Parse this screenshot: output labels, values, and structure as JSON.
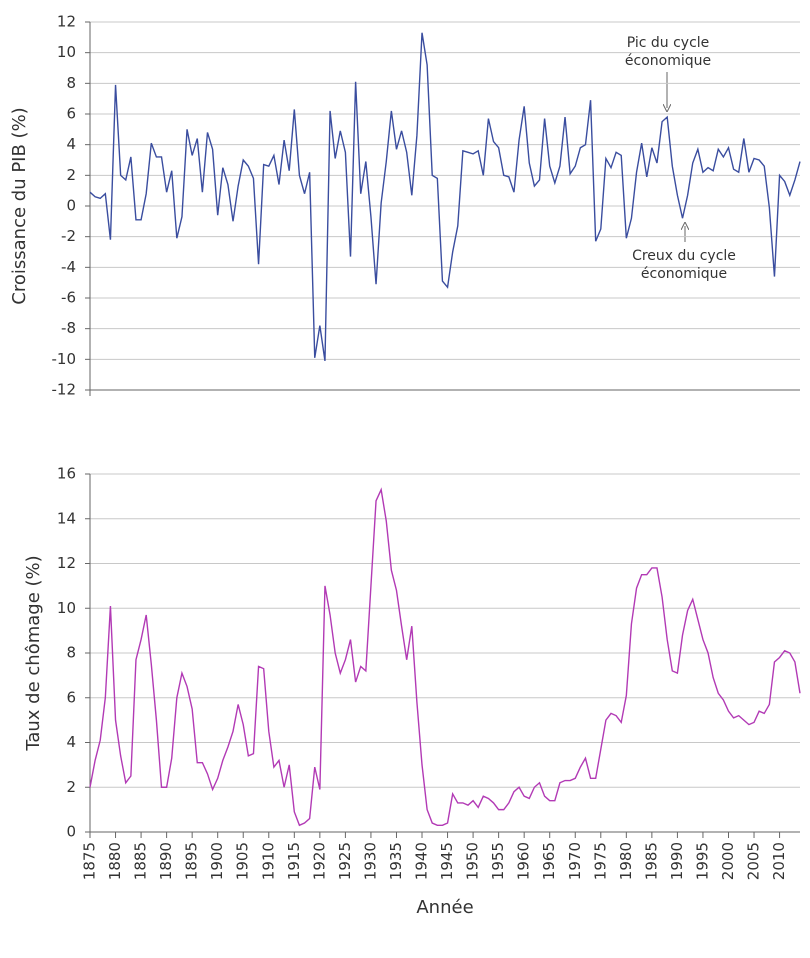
{
  "chart_data": [
    {
      "type": "line",
      "ylabel": "Croissance du PIB (%)",
      "color": "#3a4d9f",
      "xlim": [
        1875,
        2014
      ],
      "ylim": [
        -12,
        12
      ],
      "yticks": [
        -12,
        -10,
        -8,
        -6,
        -4,
        -2,
        0,
        2,
        4,
        6,
        8,
        10,
        12
      ],
      "grid": true,
      "x": [
        1875,
        1876,
        1877,
        1878,
        1879,
        1880,
        1881,
        1882,
        1883,
        1884,
        1885,
        1886,
        1887,
        1888,
        1889,
        1890,
        1891,
        1892,
        1893,
        1894,
        1895,
        1896,
        1897,
        1898,
        1899,
        1900,
        1901,
        1902,
        1903,
        1904,
        1905,
        1906,
        1907,
        1908,
        1909,
        1910,
        1911,
        1912,
        1913,
        1914,
        1915,
        1916,
        1917,
        1918,
        1919,
        1920,
        1921,
        1922,
        1923,
        1924,
        1925,
        1926,
        1927,
        1928,
        1929,
        1930,
        1931,
        1932,
        1933,
        1934,
        1935,
        1936,
        1937,
        1938,
        1939,
        1940,
        1941,
        1942,
        1943,
        1944,
        1945,
        1946,
        1947,
        1948,
        1949,
        1950,
        1951,
        1952,
        1953,
        1954,
        1955,
        1956,
        1957,
        1958,
        1959,
        1960,
        1961,
        1962,
        1963,
        1964,
        1965,
        1966,
        1967,
        1968,
        1969,
        1970,
        1971,
        1972,
        1973,
        1974,
        1975,
        1976,
        1977,
        1978,
        1979,
        1980,
        1981,
        1982,
        1983,
        1984,
        1985,
        1986,
        1987,
        1988,
        1989,
        1990,
        1991,
        1992,
        1993,
        1994,
        1995,
        1996,
        1997,
        1998,
        1999,
        2000,
        2001,
        2002,
        2003,
        2004,
        2005,
        2006,
        2007,
        2008,
        2009,
        2010,
        2011,
        2012,
        2013,
        2014
      ],
      "values": [
        0.9,
        0.6,
        0.5,
        0.8,
        -2.2,
        7.9,
        2.0,
        1.7,
        3.2,
        -0.9,
        -0.9,
        0.8,
        4.1,
        3.2,
        3.2,
        0.9,
        2.3,
        -2.1,
        -0.7,
        5.0,
        3.3,
        4.4,
        0.9,
        4.8,
        3.7,
        -0.6,
        2.5,
        1.4,
        -1.0,
        1.3,
        3.0,
        2.6,
        1.8,
        -3.8,
        2.7,
        2.6,
        3.3,
        1.4,
        4.3,
        2.3,
        6.3,
        2.0,
        0.8,
        2.2,
        -9.9,
        -7.8,
        -10.1,
        6.2,
        3.1,
        4.9,
        3.5,
        -3.3,
        8.1,
        0.8,
        2.9,
        -0.7,
        -5.1,
        0.2,
        2.9,
        6.2,
        3.7,
        4.9,
        3.5,
        0.7,
        4.6,
        11.3,
        9.2,
        2.0,
        1.8,
        -4.9,
        -5.3,
        -3.0,
        -1.3,
        3.6,
        3.5,
        3.4,
        3.6,
        2.0,
        5.7,
        4.2,
        3.8,
        2.0,
        1.9,
        0.9,
        4.3,
        6.5,
        2.8,
        1.3,
        1.7,
        5.7,
        2.6,
        1.5,
        2.6,
        5.8,
        2.1,
        2.6,
        3.8,
        4.0,
        6.9,
        -2.3,
        -1.5,
        3.1,
        2.5,
        3.5,
        3.3,
        -2.1,
        -0.8,
        2.2,
        4.1,
        1.9,
        3.8,
        2.8,
        5.5,
        5.8,
        2.6,
        0.7,
        -0.8,
        0.7,
        2.8,
        3.7,
        2.2,
        2.5,
        2.3,
        3.7,
        3.2,
        3.8,
        2.4,
        2.2,
        4.4,
        2.2,
        3.1,
        3.0,
        2.6,
        -0.1,
        -4.6,
        2.0,
        1.6,
        0.7,
        1.7,
        2.9
      ],
      "annotations": [
        {
          "lines": [
            "Pic du cycle",
            "économique"
          ]
        },
        {
          "lines": [
            "Creux du cycle",
            "économique"
          ]
        }
      ]
    },
    {
      "type": "line",
      "ylabel": "Taux de chômage (%)",
      "xlabel": "Année",
      "color": "#b23ab5",
      "xlim": [
        1875,
        2014
      ],
      "ylim": [
        0,
        16
      ],
      "yticks": [
        0,
        2,
        4,
        6,
        8,
        10,
        12,
        14,
        16
      ],
      "grid": true,
      "xticks": [
        1875,
        1880,
        1885,
        1890,
        1895,
        1900,
        1905,
        1910,
        1915,
        1920,
        1925,
        1930,
        1935,
        1940,
        1945,
        1950,
        1955,
        1960,
        1965,
        1970,
        1975,
        1980,
        1985,
        1990,
        1995,
        2000,
        2005,
        2010
      ],
      "x": [
        1875,
        1876,
        1877,
        1878,
        1879,
        1880,
        1881,
        1882,
        1883,
        1884,
        1885,
        1886,
        1887,
        1888,
        1889,
        1890,
        1891,
        1892,
        1893,
        1894,
        1895,
        1896,
        1897,
        1898,
        1899,
        1900,
        1901,
        1902,
        1903,
        1904,
        1905,
        1906,
        1907,
        1908,
        1909,
        1910,
        1911,
        1912,
        1913,
        1914,
        1915,
        1916,
        1917,
        1918,
        1919,
        1920,
        1921,
        1922,
        1923,
        1924,
        1925,
        1926,
        1927,
        1928,
        1929,
        1930,
        1931,
        1932,
        1933,
        1934,
        1935,
        1936,
        1937,
        1938,
        1939,
        1940,
        1941,
        1942,
        1943,
        1944,
        1945,
        1946,
        1947,
        1948,
        1949,
        1950,
        1951,
        1952,
        1953,
        1954,
        1955,
        1956,
        1957,
        1958,
        1959,
        1960,
        1961,
        1962,
        1963,
        1964,
        1965,
        1966,
        1967,
        1968,
        1969,
        1970,
        1971,
        1972,
        1973,
        1974,
        1975,
        1976,
        1977,
        1978,
        1979,
        1980,
        1981,
        1982,
        1983,
        1984,
        1985,
        1986,
        1987,
        1988,
        1989,
        1990,
        1991,
        1992,
        1993,
        1994,
        1995,
        1996,
        1997,
        1998,
        1999,
        2000,
        2001,
        2002,
        2003,
        2004,
        2005,
        2006,
        2007,
        2008,
        2009,
        2010,
        2011,
        2012,
        2013,
        2014
      ],
      "values": [
        2.0,
        3.2,
        4.1,
        6.0,
        10.1,
        5.0,
        3.4,
        2.2,
        2.5,
        7.7,
        8.6,
        9.7,
        7.5,
        5.0,
        2.0,
        2.0,
        3.3,
        6.0,
        7.1,
        6.5,
        5.5,
        3.1,
        3.1,
        2.6,
        1.9,
        2.4,
        3.2,
        3.8,
        4.5,
        5.7,
        4.8,
        3.4,
        3.5,
        7.4,
        7.3,
        4.5,
        2.9,
        3.2,
        2.0,
        3.0,
        0.9,
        0.3,
        0.4,
        0.6,
        2.9,
        1.9,
        11.0,
        9.7,
        8.0,
        7.1,
        7.7,
        8.6,
        6.7,
        7.4,
        7.2,
        11.0,
        14.8,
        15.3,
        13.9,
        11.7,
        10.8,
        9.2,
        7.7,
        9.2,
        5.8,
        3.0,
        1.0,
        0.4,
        0.3,
        0.3,
        0.4,
        1.7,
        1.3,
        1.3,
        1.2,
        1.4,
        1.1,
        1.6,
        1.5,
        1.3,
        1.0,
        1.0,
        1.3,
        1.8,
        2.0,
        1.6,
        1.5,
        2.0,
        2.2,
        1.6,
        1.4,
        1.4,
        2.2,
        2.3,
        2.3,
        2.4,
        2.9,
        3.3,
        2.4,
        2.4,
        3.7,
        5.0,
        5.3,
        5.2,
        4.9,
        6.1,
        9.3,
        10.9,
        11.5,
        11.5,
        11.8,
        11.8,
        10.5,
        8.6,
        7.2,
        7.1,
        8.8,
        9.9,
        10.4,
        9.5,
        8.6,
        8.0,
        6.9,
        6.2,
        5.9,
        5.4,
        5.1,
        5.2,
        5.0,
        4.8,
        4.9,
        5.4,
        5.3,
        5.7,
        7.6,
        7.8,
        8.1,
        8.0,
        7.6,
        6.2
      ]
    }
  ]
}
